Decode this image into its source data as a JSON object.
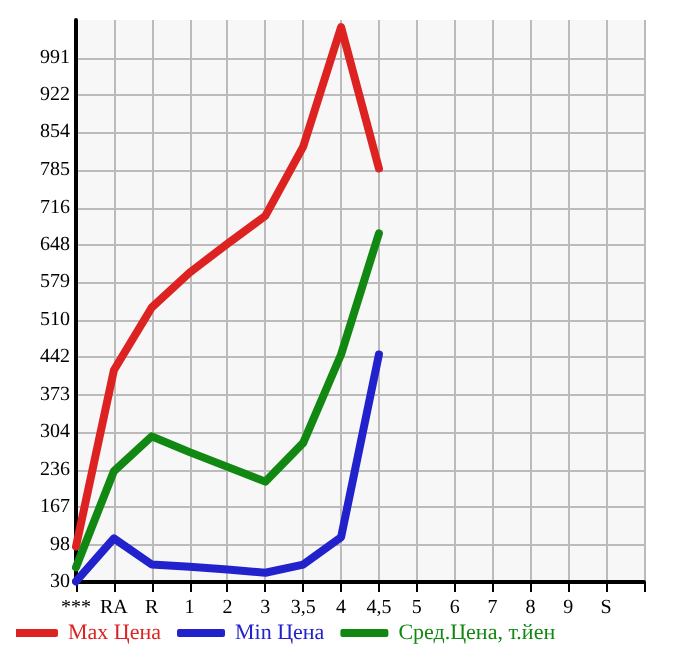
{
  "chart_data": {
    "type": "line",
    "categories": [
      "***",
      "RA",
      "R",
      "1",
      "2",
      "3",
      "3,5",
      "4",
      "4,5",
      "5",
      "6",
      "7",
      "8",
      "9",
      "S",
      null
    ],
    "series": [
      {
        "name": "Max Цена",
        "color": "#dd2222",
        "values": [
          95,
          418,
          533,
          597,
          650,
          701,
          828,
          1047,
          788,
          null,
          null,
          null,
          null,
          null,
          null,
          null
        ]
      },
      {
        "name": "Min Цена",
        "color": "#2222cc",
        "values": [
          31,
          110,
          62,
          58,
          53,
          47,
          62,
          112,
          447,
          null,
          null,
          null,
          null,
          null,
          null,
          null
        ]
      },
      {
        "name": "Сред.Цена, т.йен",
        "color": "#118811",
        "values": [
          57,
          233,
          297,
          268,
          241,
          214,
          285,
          447,
          669,
          null,
          null,
          null,
          null,
          null,
          null,
          null
        ]
      }
    ],
    "ylim": [
      30,
      1060
    ],
    "yticks": [
      30,
      98,
      167,
      236,
      304,
      373,
      442,
      510,
      579,
      648,
      716,
      785,
      854,
      922,
      991
    ],
    "grid": true,
    "legend": "bottom",
    "marker": "none",
    "line_style": "solid"
  }
}
